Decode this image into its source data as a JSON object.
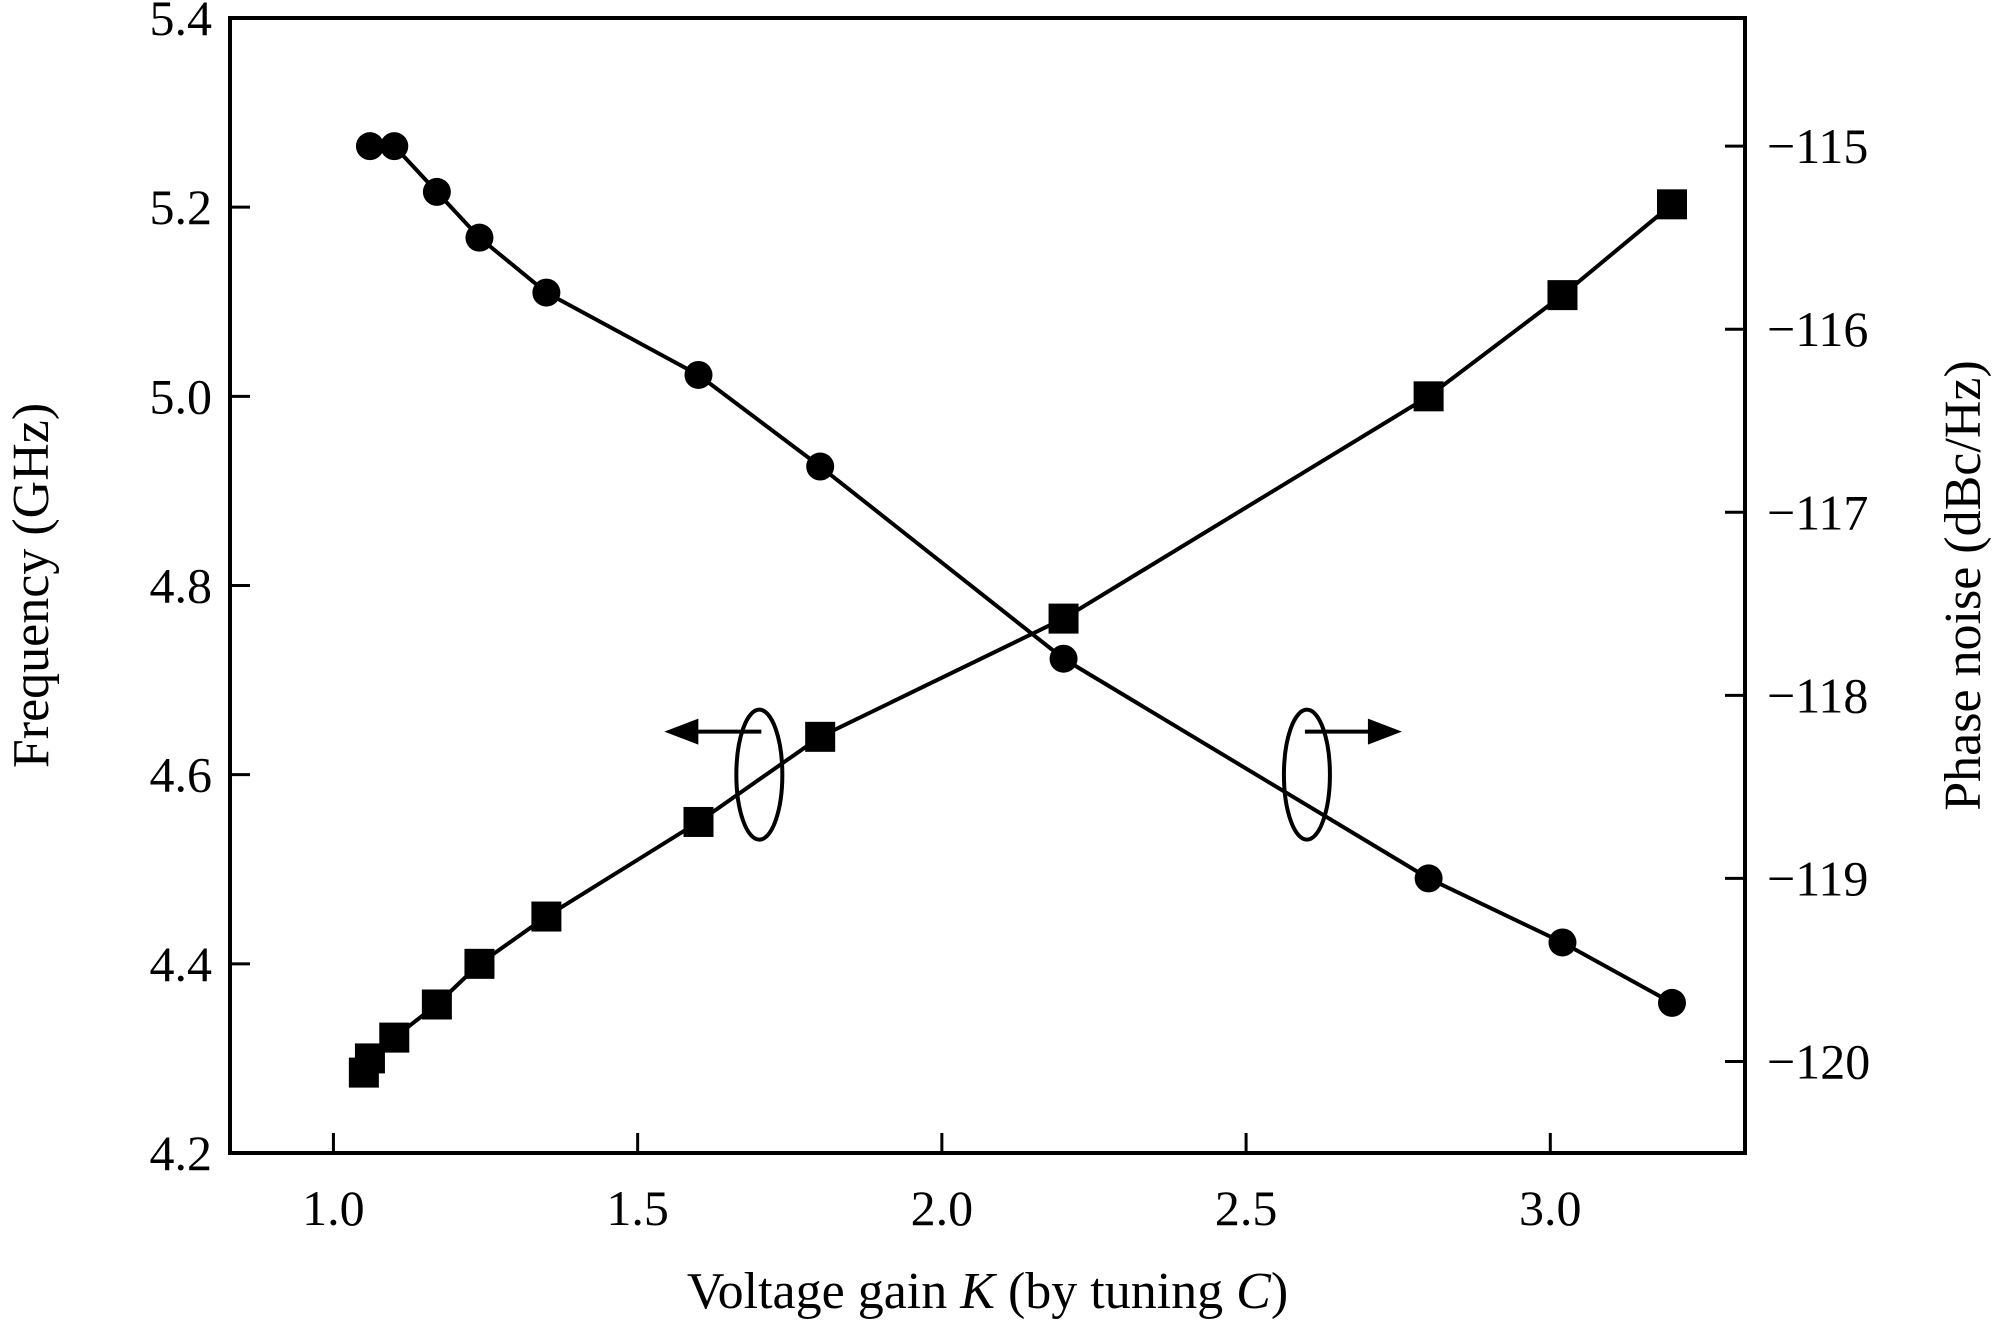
{
  "chart_data": {
    "type": "line",
    "xlabel_parts": [
      {
        "text": "Voltage gain ",
        "italic": false
      },
      {
        "text": "K",
        "italic": true
      },
      {
        "text": " (by tuning ",
        "italic": false
      },
      {
        "text": "C",
        "italic": true
      },
      {
        "text": ")",
        "italic": false
      }
    ],
    "ylabel_left": "Frequency (GHz)",
    "ylabel_right": "Phase noise (dBc/Hz)",
    "xlim": [
      0.83,
      3.32
    ],
    "ylim_left": [
      4.2,
      5.4
    ],
    "ylim_right": [
      -120.5,
      -114.3
    ],
    "x_ticks": [
      "1.0",
      "1.5",
      "2.0",
      "2.5",
      "3.0"
    ],
    "x_tick_values": [
      1.0,
      1.5,
      2.0,
      2.5,
      3.0
    ],
    "y_left_ticks": [
      "4.2",
      "4.4",
      "4.6",
      "4.8",
      "5.0",
      "5.2",
      "5.4"
    ],
    "y_left_tick_values": [
      4.2,
      4.4,
      4.6,
      4.8,
      5.0,
      5.2,
      5.4
    ],
    "y_right_ticks": [
      "−115",
      "−116",
      "−117",
      "−118",
      "−119",
      "−120"
    ],
    "y_right_tick_values": [
      -115,
      -116,
      -117,
      -118,
      -119,
      -120
    ],
    "grid": false,
    "series": [
      {
        "axis": "left",
        "marker": "square",
        "x": [
          1.05,
          1.06,
          1.1,
          1.17,
          1.24,
          1.35,
          1.6,
          1.8,
          2.2,
          2.8,
          3.02,
          3.2
        ],
        "y": [
          4.285,
          4.3,
          4.322,
          4.357,
          4.4,
          4.45,
          4.55,
          4.64,
          4.765,
          5.0,
          5.107,
          5.203
        ]
      },
      {
        "axis": "right",
        "marker": "circle",
        "x": [
          1.06,
          1.1,
          1.17,
          1.24,
          1.35,
          1.6,
          1.8,
          2.2,
          2.8,
          3.02,
          3.2
        ],
        "y": [
          -115.0,
          -115.0,
          -115.25,
          -115.5,
          -115.8,
          -116.25,
          -116.75,
          -117.8,
          -119.0,
          -119.35,
          -119.68
        ]
      }
    ],
    "annotations": [
      {
        "kind": "axis-indicator",
        "points_to": "left",
        "x": 1.7,
        "y_left": 4.6
      },
      {
        "kind": "axis-indicator",
        "points_to": "right",
        "x": 2.6,
        "y_left": 4.6
      }
    ],
    "color": "#000000"
  }
}
